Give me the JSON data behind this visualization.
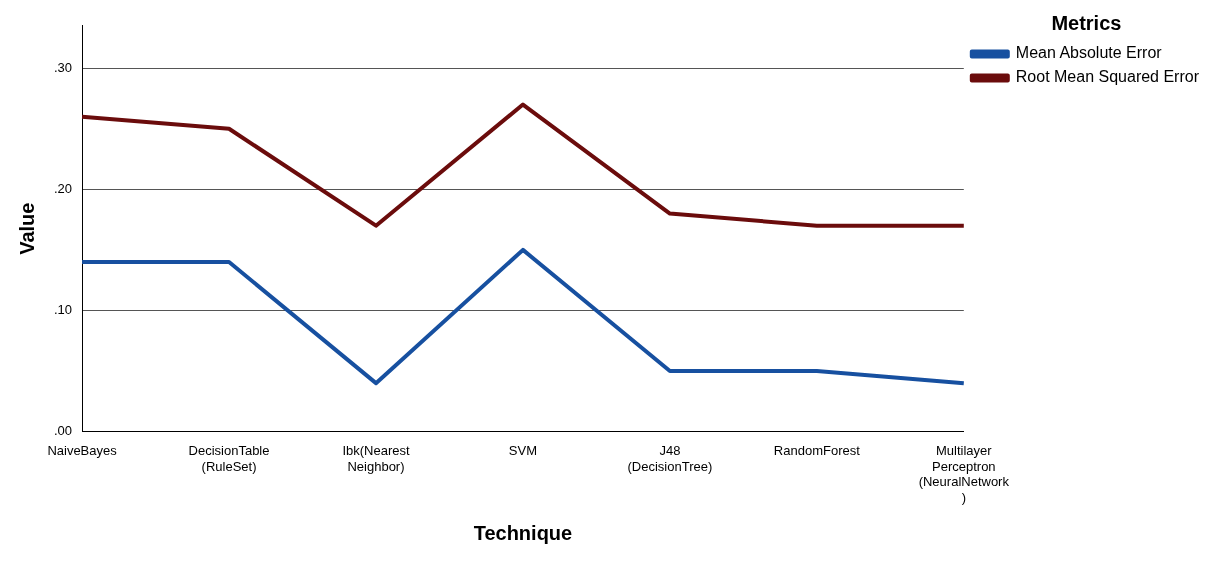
{
  "chart_data": {
    "type": "line",
    "xlabel": "Technique",
    "ylabel": "Value",
    "legend_title": "Metrics",
    "categories": [
      "NaiveBayes",
      "DecisionTable\n(RuleSet)",
      "Ibk(Nearest\nNeighbor)",
      "SVM",
      "J48\n(DecisionTree)",
      "RandomForest",
      "Multilayer\nPerceptron\n(NeuralNetwork\n)"
    ],
    "series": [
      {
        "name": "Mean Absolute Error",
        "color": "#1750a0",
        "values": [
          0.14,
          0.14,
          0.04,
          0.15,
          0.05,
          0.05,
          0.04
        ]
      },
      {
        "name": "Root Mean Squared Error",
        "color": "#6b0c0c",
        "values": [
          0.26,
          0.25,
          0.17,
          0.27,
          0.18,
          0.17,
          0.17
        ]
      }
    ],
    "ylim": [
      0,
      0.335
    ],
    "yticks": [
      {
        "value": 0,
        "label": ".00"
      },
      {
        "value": 0.1,
        "label": ".10"
      },
      {
        "value": 0.2,
        "label": ".20"
      },
      {
        "value": 0.3,
        "label": ".30"
      }
    ],
    "grid": "y",
    "legend": "top right",
    "marker": "none",
    "line_style": "solid"
  }
}
